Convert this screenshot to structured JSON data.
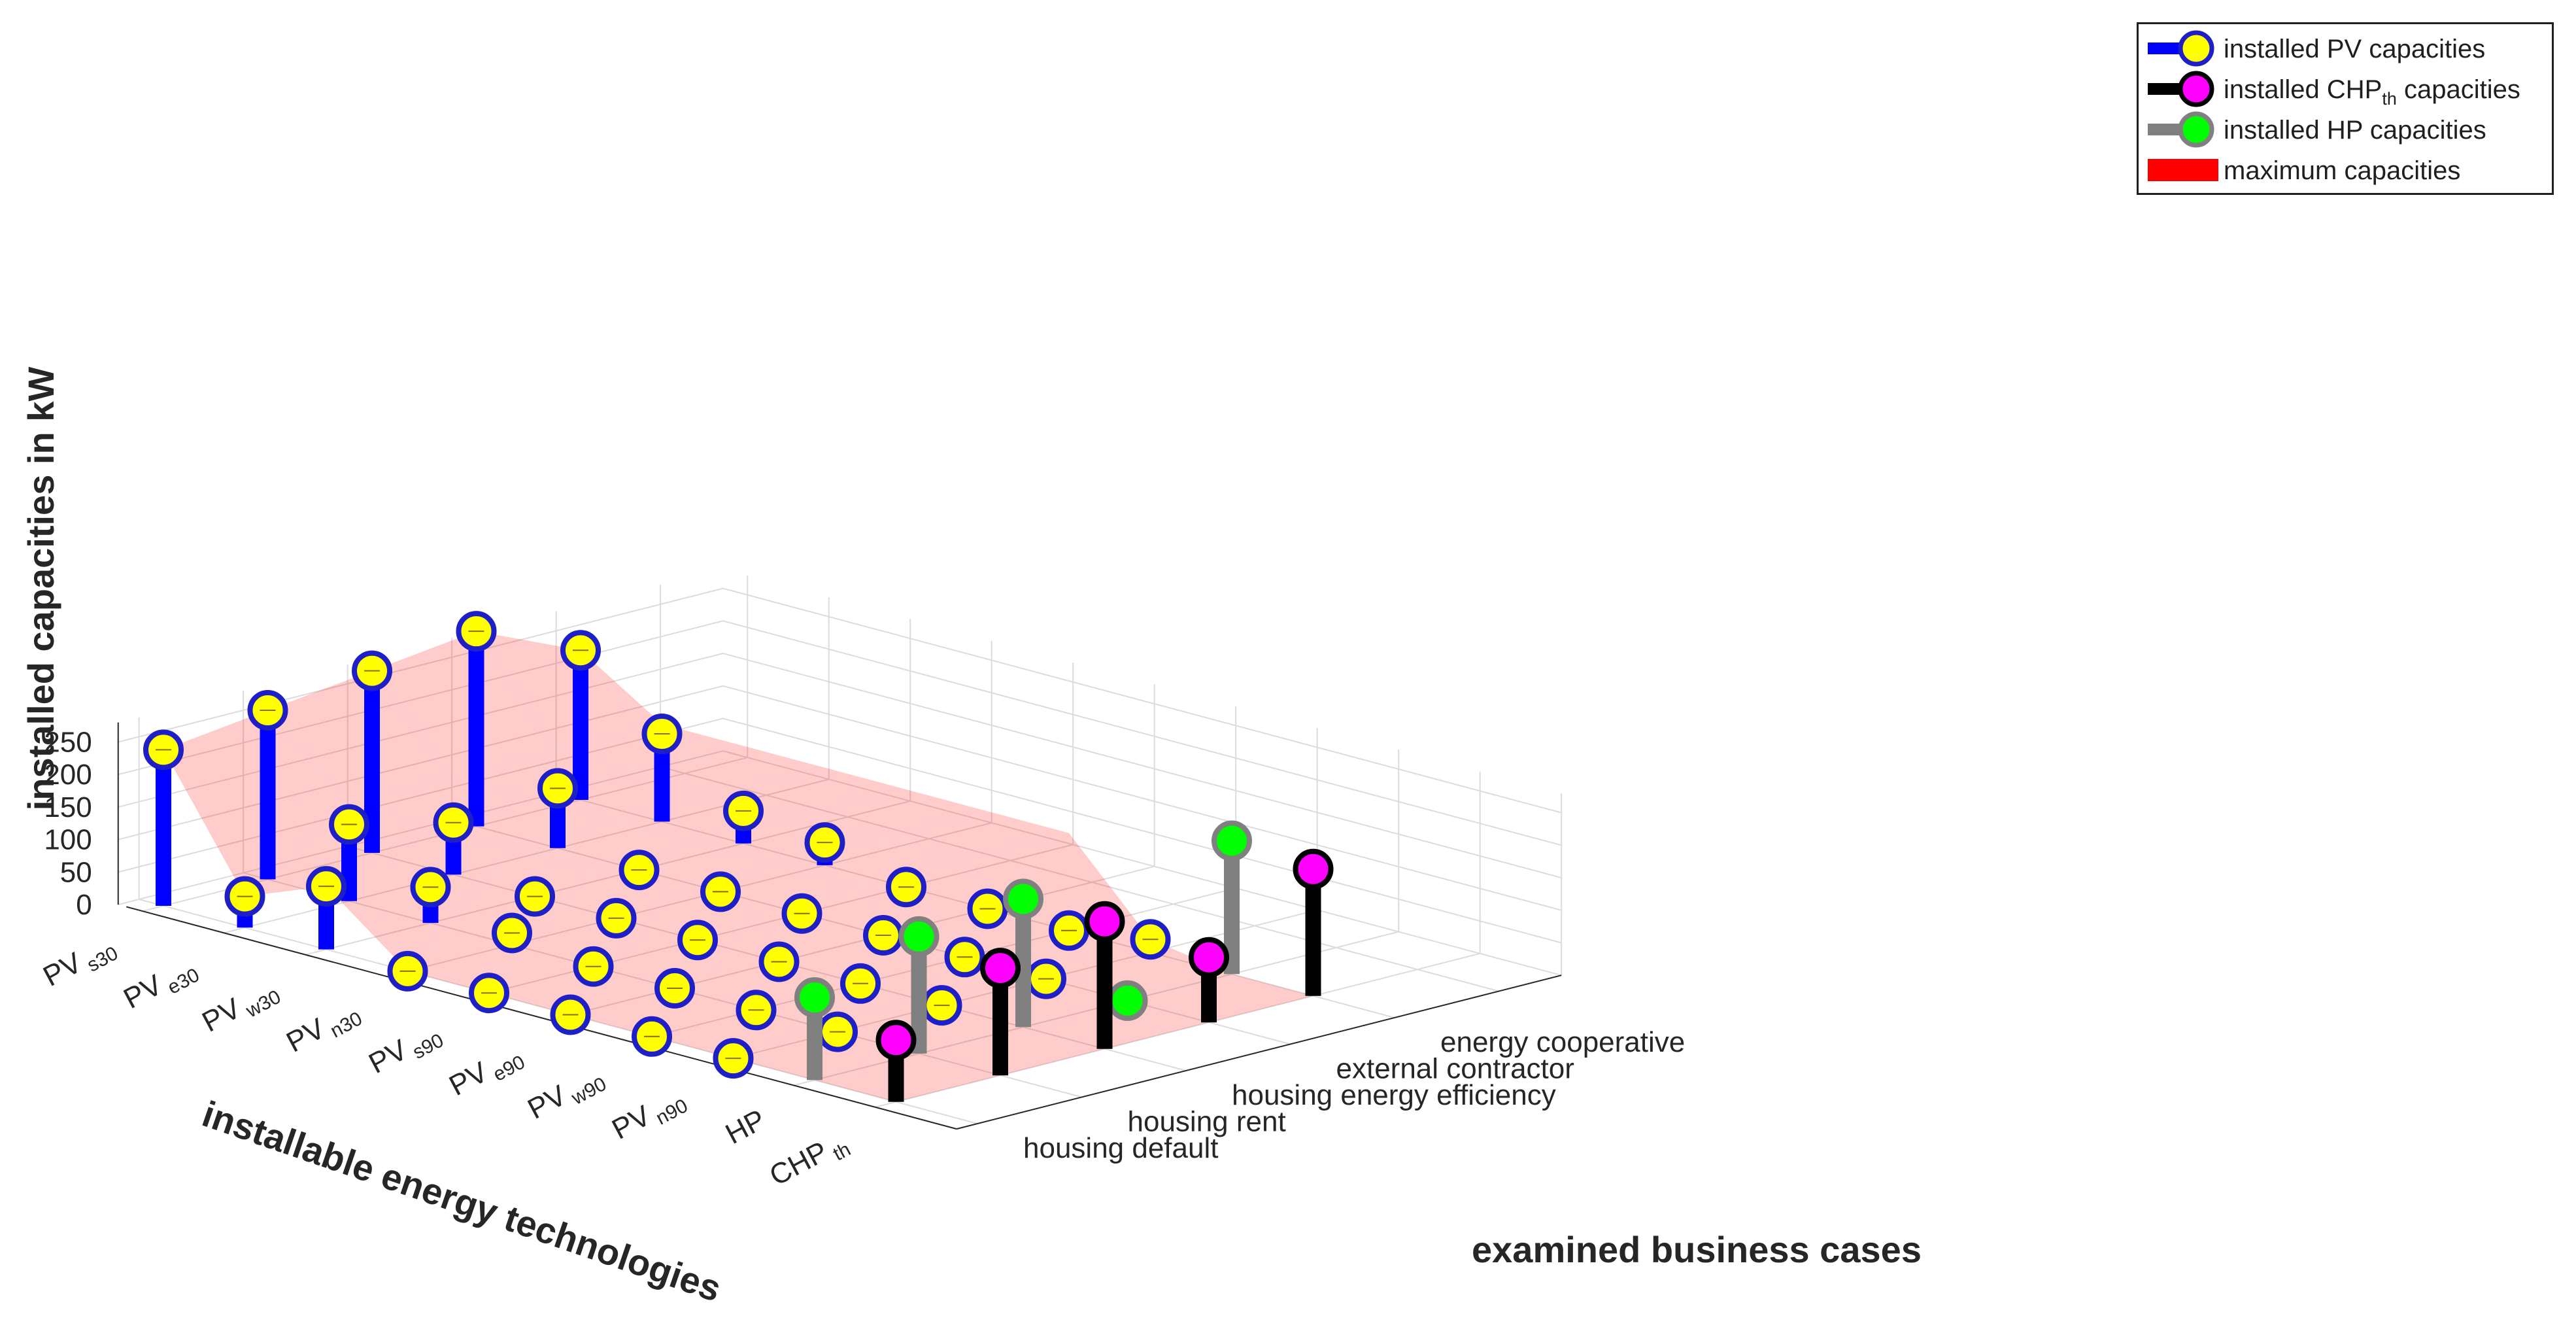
{
  "chart_data": {
    "type": "3d-stem",
    "zlabel": "installed capacities in kW",
    "ylabel": "installable energy technologies",
    "xlabel": "examined business cases",
    "zlim": [
      0,
      250
    ],
    "z_ticks": [
      "0",
      "50",
      "100",
      "150",
      "200",
      "250"
    ],
    "grid": true,
    "legend_position": "top-right",
    "technologies": [
      {
        "base": "PV",
        "sub": "s30"
      },
      {
        "base": "PV",
        "sub": "e30"
      },
      {
        "base": "PV",
        "sub": "w30"
      },
      {
        "base": "PV",
        "sub": "n30"
      },
      {
        "base": "PV",
        "sub": "s90"
      },
      {
        "base": "PV",
        "sub": "e90"
      },
      {
        "base": "PV",
        "sub": "w90"
      },
      {
        "base": "PV",
        "sub": "n90"
      },
      {
        "base": "HP",
        "sub": ""
      },
      {
        "base": "CHP",
        "sub": "th"
      }
    ],
    "business_cases": [
      "housing default",
      "housing rent",
      "housing energy efficiency",
      "external contractor",
      "energy cooperative"
    ],
    "series": [
      {
        "name": "installed PV capacities",
        "color": "#0000ff",
        "marker_fill": "#ffff00",
        "marker_edge": "#1f1fc8"
      },
      {
        "name": "installed CHP",
        "name_sub": "th",
        "name_suffix": " capacities",
        "color": "#000000",
        "marker_fill": "#ff00ff",
        "marker_edge": "#000000"
      },
      {
        "name": "installed HP capacities",
        "color": "#808080",
        "marker_fill": "#00ff00",
        "marker_edge": "#808080"
      },
      {
        "name": "maximum capacities",
        "color": "#ff0000"
      }
    ],
    "values": [
      [
        240,
        0,
        0,
        0,
        0
      ],
      [
        48,
        125,
        0,
        0,
        0
      ],
      [
        97,
        35,
        0,
        0,
        0
      ],
      [
        0,
        140,
        0,
        0,
        0
      ],
      [
        0,
        72,
        20,
        0,
        0
      ],
      [
        0,
        120,
        0,
        0,
        0
      ],
      [
        0,
        18,
        42,
        0,
        0
      ],
      [
        0,
        0,
        145,
        20,
        0
      ],
      [
        0,
        0,
        0,
        0,
        0
      ],
      [
        0,
        0,
        0,
        0,
        0
      ]
    ],
    "values_pv_far": [
      [
        285,
        150,
        0,
        0,
        0
      ],
      [
        270,
        80,
        0,
        0,
        0
      ],
      [
        0,
        255,
        0,
        0,
        0
      ],
      [
        0,
        0,
        0,
        0,
        0
      ],
      [
        0,
        0,
        0,
        0,
        0
      ],
      [
        0,
        0,
        0,
        0,
        0
      ],
      [
        0,
        0,
        0,
        0,
        0
      ],
      [
        0,
        0,
        0,
        0,
        0
      ]
    ],
    "stems": [
      {
        "tech": 0,
        "case": 0,
        "kind": "pv",
        "value": 240
      },
      {
        "tech": 1,
        "case": 0,
        "kind": "pv",
        "value": 48
      },
      {
        "tech": 2,
        "case": 0,
        "kind": "pv",
        "value": 97
      },
      {
        "tech": 3,
        "case": 0,
        "kind": "pv",
        "value": 0
      },
      {
        "tech": 4,
        "case": 0,
        "kind": "pv",
        "value": 0
      },
      {
        "tech": 5,
        "case": 0,
        "kind": "pv",
        "value": 0
      },
      {
        "tech": 6,
        "case": 0,
        "kind": "pv",
        "value": 0
      },
      {
        "tech": 7,
        "case": 0,
        "kind": "pv",
        "value": 0
      },
      {
        "tech": 8,
        "case": 0,
        "kind": "hp",
        "value": 127
      },
      {
        "tech": 9,
        "case": 0,
        "kind": "chp",
        "value": 95
      },
      {
        "tech": 0,
        "case": 1,
        "kind": "pv",
        "value": 260
      },
      {
        "tech": 1,
        "case": 1,
        "kind": "pv",
        "value": 118
      },
      {
        "tech": 2,
        "case": 1,
        "kind": "pv",
        "value": 55
      },
      {
        "tech": 3,
        "case": 1,
        "kind": "pv",
        "value": 18
      },
      {
        "tech": 4,
        "case": 1,
        "kind": "pv",
        "value": 0
      },
      {
        "tech": 5,
        "case": 1,
        "kind": "pv",
        "value": 0
      },
      {
        "tech": 6,
        "case": 1,
        "kind": "pv",
        "value": 0
      },
      {
        "tech": 7,
        "case": 1,
        "kind": "pv",
        "value": 0
      },
      {
        "tech": 8,
        "case": 1,
        "kind": "hp",
        "value": 180
      },
      {
        "tech": 9,
        "case": 1,
        "kind": "chp",
        "value": 165
      },
      {
        "tech": 0,
        "case": 2,
        "kind": "pv",
        "value": 280
      },
      {
        "tech": 1,
        "case": 2,
        "kind": "pv",
        "value": 80
      },
      {
        "tech": 2,
        "case": 2,
        "kind": "pv",
        "value": 0
      },
      {
        "tech": 3,
        "case": 2,
        "kind": "pv",
        "value": 0
      },
      {
        "tech": 4,
        "case": 2,
        "kind": "pv",
        "value": 0
      },
      {
        "tech": 5,
        "case": 2,
        "kind": "pv",
        "value": 0
      },
      {
        "tech": 6,
        "case": 2,
        "kind": "pv",
        "value": 0
      },
      {
        "tech": 7,
        "case": 2,
        "kind": "pv",
        "value": 0
      },
      {
        "tech": 8,
        "case": 2,
        "kind": "hp",
        "value": 197
      },
      {
        "tech": 9,
        "case": 2,
        "kind": "chp",
        "value": 196
      },
      {
        "tech": 0,
        "case": 3,
        "kind": "pv",
        "value": 300
      },
      {
        "tech": 1,
        "case": 3,
        "kind": "pv",
        "value": 92
      },
      {
        "tech": 2,
        "case": 3,
        "kind": "pv",
        "value": 0
      },
      {
        "tech": 3,
        "case": 3,
        "kind": "pv",
        "value": 0
      },
      {
        "tech": 4,
        "case": 3,
        "kind": "pv",
        "value": 0
      },
      {
        "tech": 5,
        "case": 3,
        "kind": "pv",
        "value": 0
      },
      {
        "tech": 6,
        "case": 3,
        "kind": "pv",
        "value": 0
      },
      {
        "tech": 7,
        "case": 3,
        "kind": "pv",
        "value": 0
      },
      {
        "tech": 8,
        "case": 3,
        "kind": "hp",
        "value": 0
      },
      {
        "tech": 9,
        "case": 3,
        "kind": "chp",
        "value": 100
      },
      {
        "tech": 0,
        "case": 4,
        "kind": "pv",
        "value": 230
      },
      {
        "tech": 1,
        "case": 4,
        "kind": "pv",
        "value": 135
      },
      {
        "tech": 2,
        "case": 4,
        "kind": "pv",
        "value": 50
      },
      {
        "tech": 3,
        "case": 4,
        "kind": "pv",
        "value": 35
      },
      {
        "tech": 4,
        "case": 4,
        "kind": "pv",
        "value": 0
      },
      {
        "tech": 5,
        "case": 4,
        "kind": "pv",
        "value": 0
      },
      {
        "tech": 6,
        "case": 4,
        "kind": "pv",
        "value": 0
      },
      {
        "tech": 7,
        "case": 4,
        "kind": "pv",
        "value": 20
      },
      {
        "tech": 8,
        "case": 4,
        "kind": "hp",
        "value": 205
      },
      {
        "tech": 9,
        "case": 4,
        "kind": "chp",
        "value": 195
      }
    ],
    "max_capacities": [
      [
        240,
        260,
        280,
        300,
        230
      ],
      [
        48,
        150,
        150,
        150,
        150
      ],
      [
        97,
        150,
        150,
        150,
        150
      ],
      [
        0,
        150,
        150,
        150,
        150
      ],
      [
        0,
        150,
        150,
        150,
        150
      ],
      [
        0,
        150,
        150,
        150,
        150
      ],
      [
        0,
        150,
        150,
        150,
        150
      ],
      [
        0,
        20,
        20,
        20,
        20
      ],
      [
        0,
        0,
        0,
        0,
        0
      ],
      [
        0,
        0,
        0,
        0,
        0
      ]
    ]
  },
  "legend": {
    "pv": "installed PV capacities",
    "chp_base": "installed CHP",
    "chp_sub": "th",
    "chp_suffix": " capacities",
    "hp": "installed HP capacities",
    "max": "maximum capacities"
  }
}
